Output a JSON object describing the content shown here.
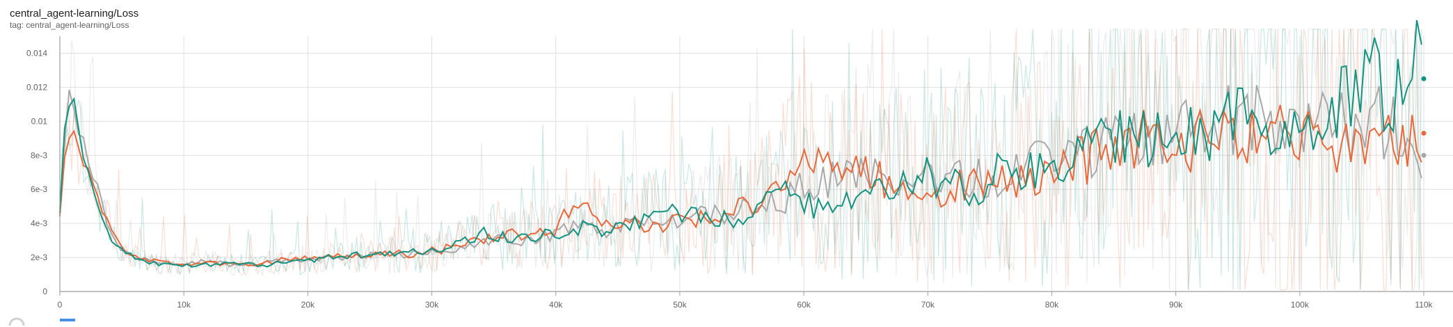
{
  "header": {
    "title": "central_agent-learning/Loss",
    "tag": "tag: central_agent-learning/Loss"
  },
  "colors": {
    "teal": "#12937f",
    "orange": "#e9683a",
    "gray": "#a8a8a8",
    "grid": "#e0e0e0",
    "axis": "#9e9e9e"
  },
  "chart_data": {
    "type": "line",
    "title": "central_agent-learning/Loss",
    "xlim": [
      0,
      110000
    ],
    "ylim": [
      0,
      0.015
    ],
    "x_ticks": [
      0,
      10000,
      20000,
      30000,
      40000,
      50000,
      60000,
      70000,
      80000,
      90000,
      100000,
      110000
    ],
    "x_tick_labels": [
      "0",
      "10k",
      "20k",
      "30k",
      "40k",
      "50k",
      "60k",
      "70k",
      "80k",
      "90k",
      "100k",
      "110k"
    ],
    "y_ticks": [
      0,
      0.002,
      0.004,
      0.006,
      0.008,
      0.01,
      0.012,
      0.014
    ],
    "y_tick_labels": [
      "0",
      "2e-3",
      "4e-3",
      "6e-3",
      "8e-3",
      "0.01",
      "0.012",
      "0.014"
    ],
    "grid": true,
    "series": [
      {
        "color": "#a8a8a8",
        "x": [
          0,
          500,
          1000,
          1500,
          2000,
          3000,
          4000,
          5000,
          6000,
          8000,
          10000,
          12000,
          14000,
          16000,
          18000,
          20000,
          22000,
          24000,
          26000,
          28000,
          30000,
          32000,
          34000,
          36000,
          38000,
          40000,
          42000,
          44000,
          46000,
          48000,
          50000,
          52000,
          54000,
          56000,
          58000,
          60000,
          62000,
          64000,
          66000,
          68000,
          70000,
          72000,
          74000,
          76000,
          78000,
          80000,
          82000,
          84000,
          86000,
          88000,
          90000,
          92000,
          94000,
          96000,
          98000,
          100000,
          102000,
          104000,
          106000,
          108000,
          109000,
          110000
        ],
        "values": [
          0.0052,
          0.0105,
          0.0118,
          0.0098,
          0.0085,
          0.0062,
          0.0035,
          0.0024,
          0.002,
          0.0017,
          0.0016,
          0.0018,
          0.0015,
          0.0016,
          0.0018,
          0.0019,
          0.002,
          0.0021,
          0.0022,
          0.0021,
          0.0024,
          0.0025,
          0.003,
          0.0031,
          0.003,
          0.0034,
          0.0038,
          0.0035,
          0.004,
          0.0039,
          0.0043,
          0.0046,
          0.0045,
          0.0051,
          0.0052,
          0.0062,
          0.0065,
          0.007,
          0.0072,
          0.0067,
          0.0065,
          0.007,
          0.0066,
          0.0068,
          0.0075,
          0.0079,
          0.008,
          0.0085,
          0.0095,
          0.009,
          0.0093,
          0.0098,
          0.0102,
          0.01,
          0.0103,
          0.0097,
          0.0105,
          0.0099,
          0.0101,
          0.0095,
          0.009,
          0.008
        ]
      },
      {
        "color": "#e9683a",
        "x": [
          0,
          500,
          1000,
          1500,
          2000,
          3000,
          4000,
          5000,
          6000,
          8000,
          10000,
          12000,
          14000,
          16000,
          18000,
          20000,
          22000,
          24000,
          26000,
          28000,
          30000,
          32000,
          34000,
          36000,
          38000,
          40000,
          42000,
          44000,
          46000,
          48000,
          50000,
          52000,
          54000,
          56000,
          58000,
          60000,
          62000,
          64000,
          66000,
          68000,
          70000,
          72000,
          74000,
          76000,
          78000,
          80000,
          82000,
          84000,
          86000,
          88000,
          90000,
          92000,
          94000,
          96000,
          98000,
          100000,
          102000,
          104000,
          106000,
          108000,
          109000,
          110000
        ],
        "values": [
          0.0045,
          0.009,
          0.01,
          0.0088,
          0.0075,
          0.0058,
          0.0038,
          0.0026,
          0.0021,
          0.0017,
          0.0016,
          0.0017,
          0.0016,
          0.0015,
          0.002,
          0.0019,
          0.0021,
          0.002,
          0.0023,
          0.0022,
          0.0024,
          0.0026,
          0.0031,
          0.0034,
          0.0033,
          0.0036,
          0.0057,
          0.0038,
          0.0041,
          0.004,
          0.0042,
          0.0044,
          0.0047,
          0.0053,
          0.0058,
          0.0078,
          0.0071,
          0.0072,
          0.0066,
          0.0062,
          0.0052,
          0.006,
          0.0065,
          0.0063,
          0.0066,
          0.0075,
          0.0076,
          0.0081,
          0.0083,
          0.0097,
          0.0085,
          0.009,
          0.0099,
          0.0094,
          0.0088,
          0.0096,
          0.0092,
          0.0087,
          0.0078,
          0.0089,
          0.0088,
          0.0093
        ]
      },
      {
        "color": "#12937f",
        "x": [
          0,
          500,
          1000,
          1500,
          2000,
          3000,
          4000,
          5000,
          6000,
          8000,
          10000,
          12000,
          14000,
          16000,
          18000,
          20000,
          22000,
          24000,
          26000,
          28000,
          30000,
          32000,
          34000,
          36000,
          38000,
          40000,
          42000,
          44000,
          46000,
          48000,
          50000,
          52000,
          54000,
          56000,
          58000,
          60000,
          62000,
          64000,
          66000,
          68000,
          70000,
          72000,
          74000,
          76000,
          78000,
          80000,
          82000,
          84000,
          86000,
          88000,
          90000,
          92000,
          94000,
          96000,
          98000,
          100000,
          102000,
          104000,
          106000,
          108000,
          109000,
          110000
        ],
        "values": [
          0.0046,
          0.0112,
          0.0115,
          0.0094,
          0.008,
          0.0055,
          0.0033,
          0.0025,
          0.002,
          0.0016,
          0.0015,
          0.0016,
          0.0017,
          0.0015,
          0.0017,
          0.0018,
          0.002,
          0.0022,
          0.0021,
          0.0023,
          0.0023,
          0.0027,
          0.0035,
          0.0032,
          0.0031,
          0.0035,
          0.0038,
          0.0036,
          0.0041,
          0.0043,
          0.0047,
          0.0044,
          0.0043,
          0.0049,
          0.0058,
          0.0053,
          0.0046,
          0.0052,
          0.0061,
          0.0069,
          0.0068,
          0.0065,
          0.0059,
          0.0071,
          0.0072,
          0.0078,
          0.0082,
          0.0086,
          0.0091,
          0.0087,
          0.0098,
          0.009,
          0.0097,
          0.0102,
          0.0095,
          0.0108,
          0.0098,
          0.0114,
          0.013,
          0.0112,
          0.0138,
          0.0125
        ]
      }
    ]
  }
}
